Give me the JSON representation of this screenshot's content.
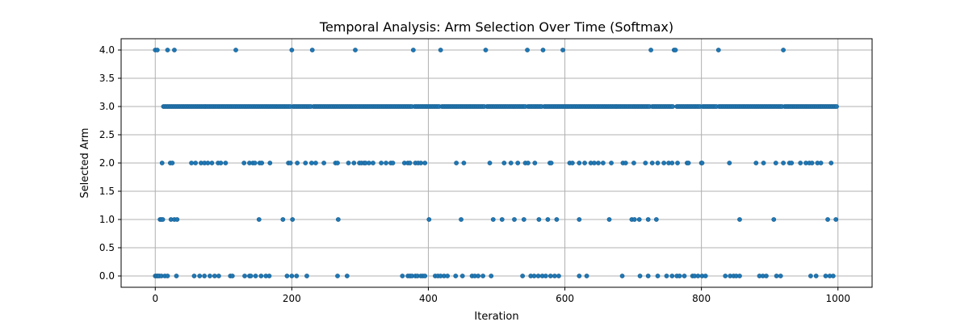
{
  "chart_data": {
    "type": "scatter",
    "title": "Temporal Analysis: Arm Selection Over Time (Softmax)",
    "xlabel": "Iteration",
    "ylabel": "Selected Arm",
    "xlim": [
      -50,
      1050
    ],
    "ylim": [
      -0.2,
      4.2
    ],
    "x_ticks": [
      0,
      200,
      400,
      600,
      800,
      1000
    ],
    "x_tick_labels": [
      "0",
      "200",
      "400",
      "600",
      "800",
      "1000"
    ],
    "y_ticks": [
      0.0,
      0.5,
      1.0,
      1.5,
      2.0,
      2.5,
      3.0,
      3.5,
      4.0
    ],
    "y_tick_labels": [
      "0.0",
      "0.5",
      "1.0",
      "1.5",
      "2.0",
      "2.5",
      "3.0",
      "3.5",
      "4.0"
    ],
    "grid": true,
    "marker_color": "#1f77b4",
    "series": [
      {
        "arm": 4,
        "x": [
          0,
          3,
          18,
          28,
          118,
          200,
          230,
          293,
          378,
          418,
          484,
          545,
          568,
          597,
          726,
          760,
          762,
          825,
          920
        ]
      },
      {
        "arm": 3,
        "x": [
          12,
          14,
          16,
          18,
          20,
          22,
          24,
          26,
          28,
          30,
          32,
          34,
          36,
          38,
          40,
          42,
          44,
          46,
          48,
          50,
          52,
          54,
          56,
          58,
          60,
          62,
          64,
          66,
          68,
          70,
          72,
          74,
          76,
          78,
          80,
          82,
          84,
          86,
          88,
          90,
          92,
          94,
          96,
          98,
          100,
          102,
          104,
          106,
          108,
          110,
          112,
          114,
          116,
          118,
          120,
          122,
          124,
          126,
          128,
          130,
          132,
          134,
          136,
          138,
          140,
          142,
          144,
          146,
          148,
          150,
          152,
          154,
          156,
          158,
          160,
          162,
          164,
          166,
          168,
          170,
          172,
          174,
          176,
          178,
          180,
          182,
          184,
          186,
          188,
          190,
          192,
          194,
          196,
          198,
          202,
          204,
          206,
          208,
          210,
          212,
          214,
          216,
          218,
          220,
          222,
          224,
          226,
          228,
          232,
          234,
          236,
          238,
          240,
          242,
          244,
          246,
          248,
          250,
          252,
          254,
          256,
          258,
          260,
          262,
          264,
          266,
          268,
          270,
          272,
          274,
          276,
          278,
          280,
          282,
          284,
          286,
          288,
          290,
          292,
          294,
          296,
          298,
          300,
          302,
          304,
          306,
          308,
          310,
          312,
          314,
          316,
          318,
          320,
          322,
          324,
          326,
          328,
          330,
          332,
          334,
          336,
          338,
          340,
          342,
          344,
          346,
          348,
          350,
          352,
          354,
          356,
          358,
          360,
          362,
          364,
          366,
          368,
          370,
          372,
          374,
          376,
          380,
          382,
          384,
          386,
          388,
          390,
          392,
          394,
          396,
          398,
          400,
          402,
          404,
          406,
          408,
          410,
          412,
          414,
          416,
          420,
          422,
          424,
          426,
          428,
          430,
          432,
          434,
          436,
          438,
          440,
          442,
          444,
          446,
          448,
          450,
          452,
          454,
          456,
          458,
          460,
          462,
          464,
          466,
          468,
          470,
          472,
          474,
          476,
          478,
          480,
          482,
          486,
          488,
          490,
          492,
          494,
          496,
          498,
          500,
          502,
          504,
          506,
          508,
          510,
          512,
          514,
          516,
          518,
          520,
          522,
          524,
          526,
          528,
          530,
          532,
          534,
          536,
          538,
          540,
          542,
          546,
          548,
          550,
          552,
          554,
          556,
          558,
          560,
          562,
          564,
          566,
          570,
          572,
          574,
          576,
          578,
          580,
          582,
          584,
          586,
          588,
          590,
          592,
          594,
          596,
          598,
          600,
          602,
          604,
          606,
          608,
          610,
          612,
          614,
          616,
          618,
          620,
          622,
          624,
          626,
          628,
          630,
          632,
          634,
          636,
          638,
          640,
          642,
          644,
          646,
          648,
          650,
          652,
          654,
          656,
          658,
          660,
          662,
          664,
          666,
          668,
          670,
          672,
          674,
          676,
          678,
          680,
          682,
          684,
          686,
          688,
          690,
          692,
          694,
          696,
          698,
          700,
          702,
          704,
          706,
          708,
          710,
          712,
          714,
          716,
          718,
          720,
          722,
          724,
          728,
          730,
          732,
          734,
          736,
          738,
          740,
          742,
          744,
          746,
          748,
          750,
          752,
          754,
          756,
          758,
          764,
          766,
          768,
          770,
          772,
          774,
          776,
          778,
          780,
          782,
          784,
          786,
          788,
          790,
          792,
          794,
          796,
          798,
          802,
          804,
          806,
          808,
          810,
          812,
          814,
          816,
          818,
          820,
          822,
          826,
          828,
          830,
          832,
          834,
          836,
          838,
          840,
          842,
          844,
          846,
          848,
          850,
          852,
          854,
          856,
          858,
          860,
          862,
          864,
          866,
          868,
          870,
          872,
          874,
          876,
          878,
          880,
          882,
          884,
          886,
          888,
          890,
          892,
          894,
          896,
          898,
          900,
          902,
          904,
          906,
          908,
          910,
          912,
          914,
          916,
          918,
          922,
          924,
          926,
          928,
          930,
          932,
          934,
          936,
          938,
          940,
          942,
          944,
          946,
          948,
          950,
          952,
          954,
          956,
          958,
          960,
          962,
          964,
          966,
          968,
          970,
          972,
          974,
          976,
          978,
          980,
          982,
          984,
          986,
          988,
          990,
          992,
          994,
          996,
          998
        ]
      },
      {
        "arm": 2,
        "x": [
          10,
          22,
          25,
          53,
          59,
          67,
          72,
          77,
          83,
          92,
          96,
          103,
          130,
          138,
          143,
          146,
          153,
          156,
          168,
          195,
          198,
          208,
          220,
          229,
          235,
          247,
          264,
          267,
          283,
          291,
          299,
          302,
          306,
          308,
          313,
          319,
          331,
          338,
          345,
          348,
          365,
          370,
          373,
          381,
          385,
          389,
          395,
          441,
          452,
          490,
          511,
          521,
          531,
          542,
          546,
          556,
          578,
          580,
          607,
          611,
          621,
          629,
          638,
          643,
          649,
          656,
          668,
          685,
          689,
          701,
          718,
          728,
          736,
          745,
          752,
          757,
          765,
          779,
          781,
          800,
          801,
          841,
          880,
          891,
          909,
          920,
          929,
          932,
          945,
          953,
          958,
          962,
          970,
          975,
          990
        ]
      },
      {
        "arm": 1,
        "x": [
          7,
          9,
          11,
          23,
          28,
          32,
          152,
          187,
          201,
          268,
          401,
          448,
          495,
          508,
          526,
          540,
          562,
          575,
          588,
          621,
          665,
          698,
          702,
          709,
          722,
          734,
          856,
          906,
          985,
          997
        ]
      },
      {
        "arm": 0,
        "x": [
          0,
          2,
          4,
          6,
          9,
          14,
          18,
          31,
          57,
          65,
          72,
          80,
          87,
          93,
          110,
          113,
          131,
          138,
          140,
          147,
          155,
          162,
          167,
          193,
          200,
          207,
          222,
          267,
          281,
          362,
          370,
          373,
          376,
          381,
          384,
          389,
          392,
          395,
          410,
          414,
          418,
          423,
          428,
          440,
          450,
          464,
          468,
          473,
          480,
          492,
          538,
          550,
          555,
          561,
          567,
          572,
          579,
          585,
          591,
          621,
          632,
          684,
          710,
          722,
          736,
          749,
          757,
          764,
          768,
          775,
          787,
          790,
          795,
          801,
          806,
          835,
          842,
          847,
          851,
          856,
          885,
          890,
          895,
          910,
          916,
          960,
          968,
          982,
          988,
          993
        ]
      }
    ]
  }
}
